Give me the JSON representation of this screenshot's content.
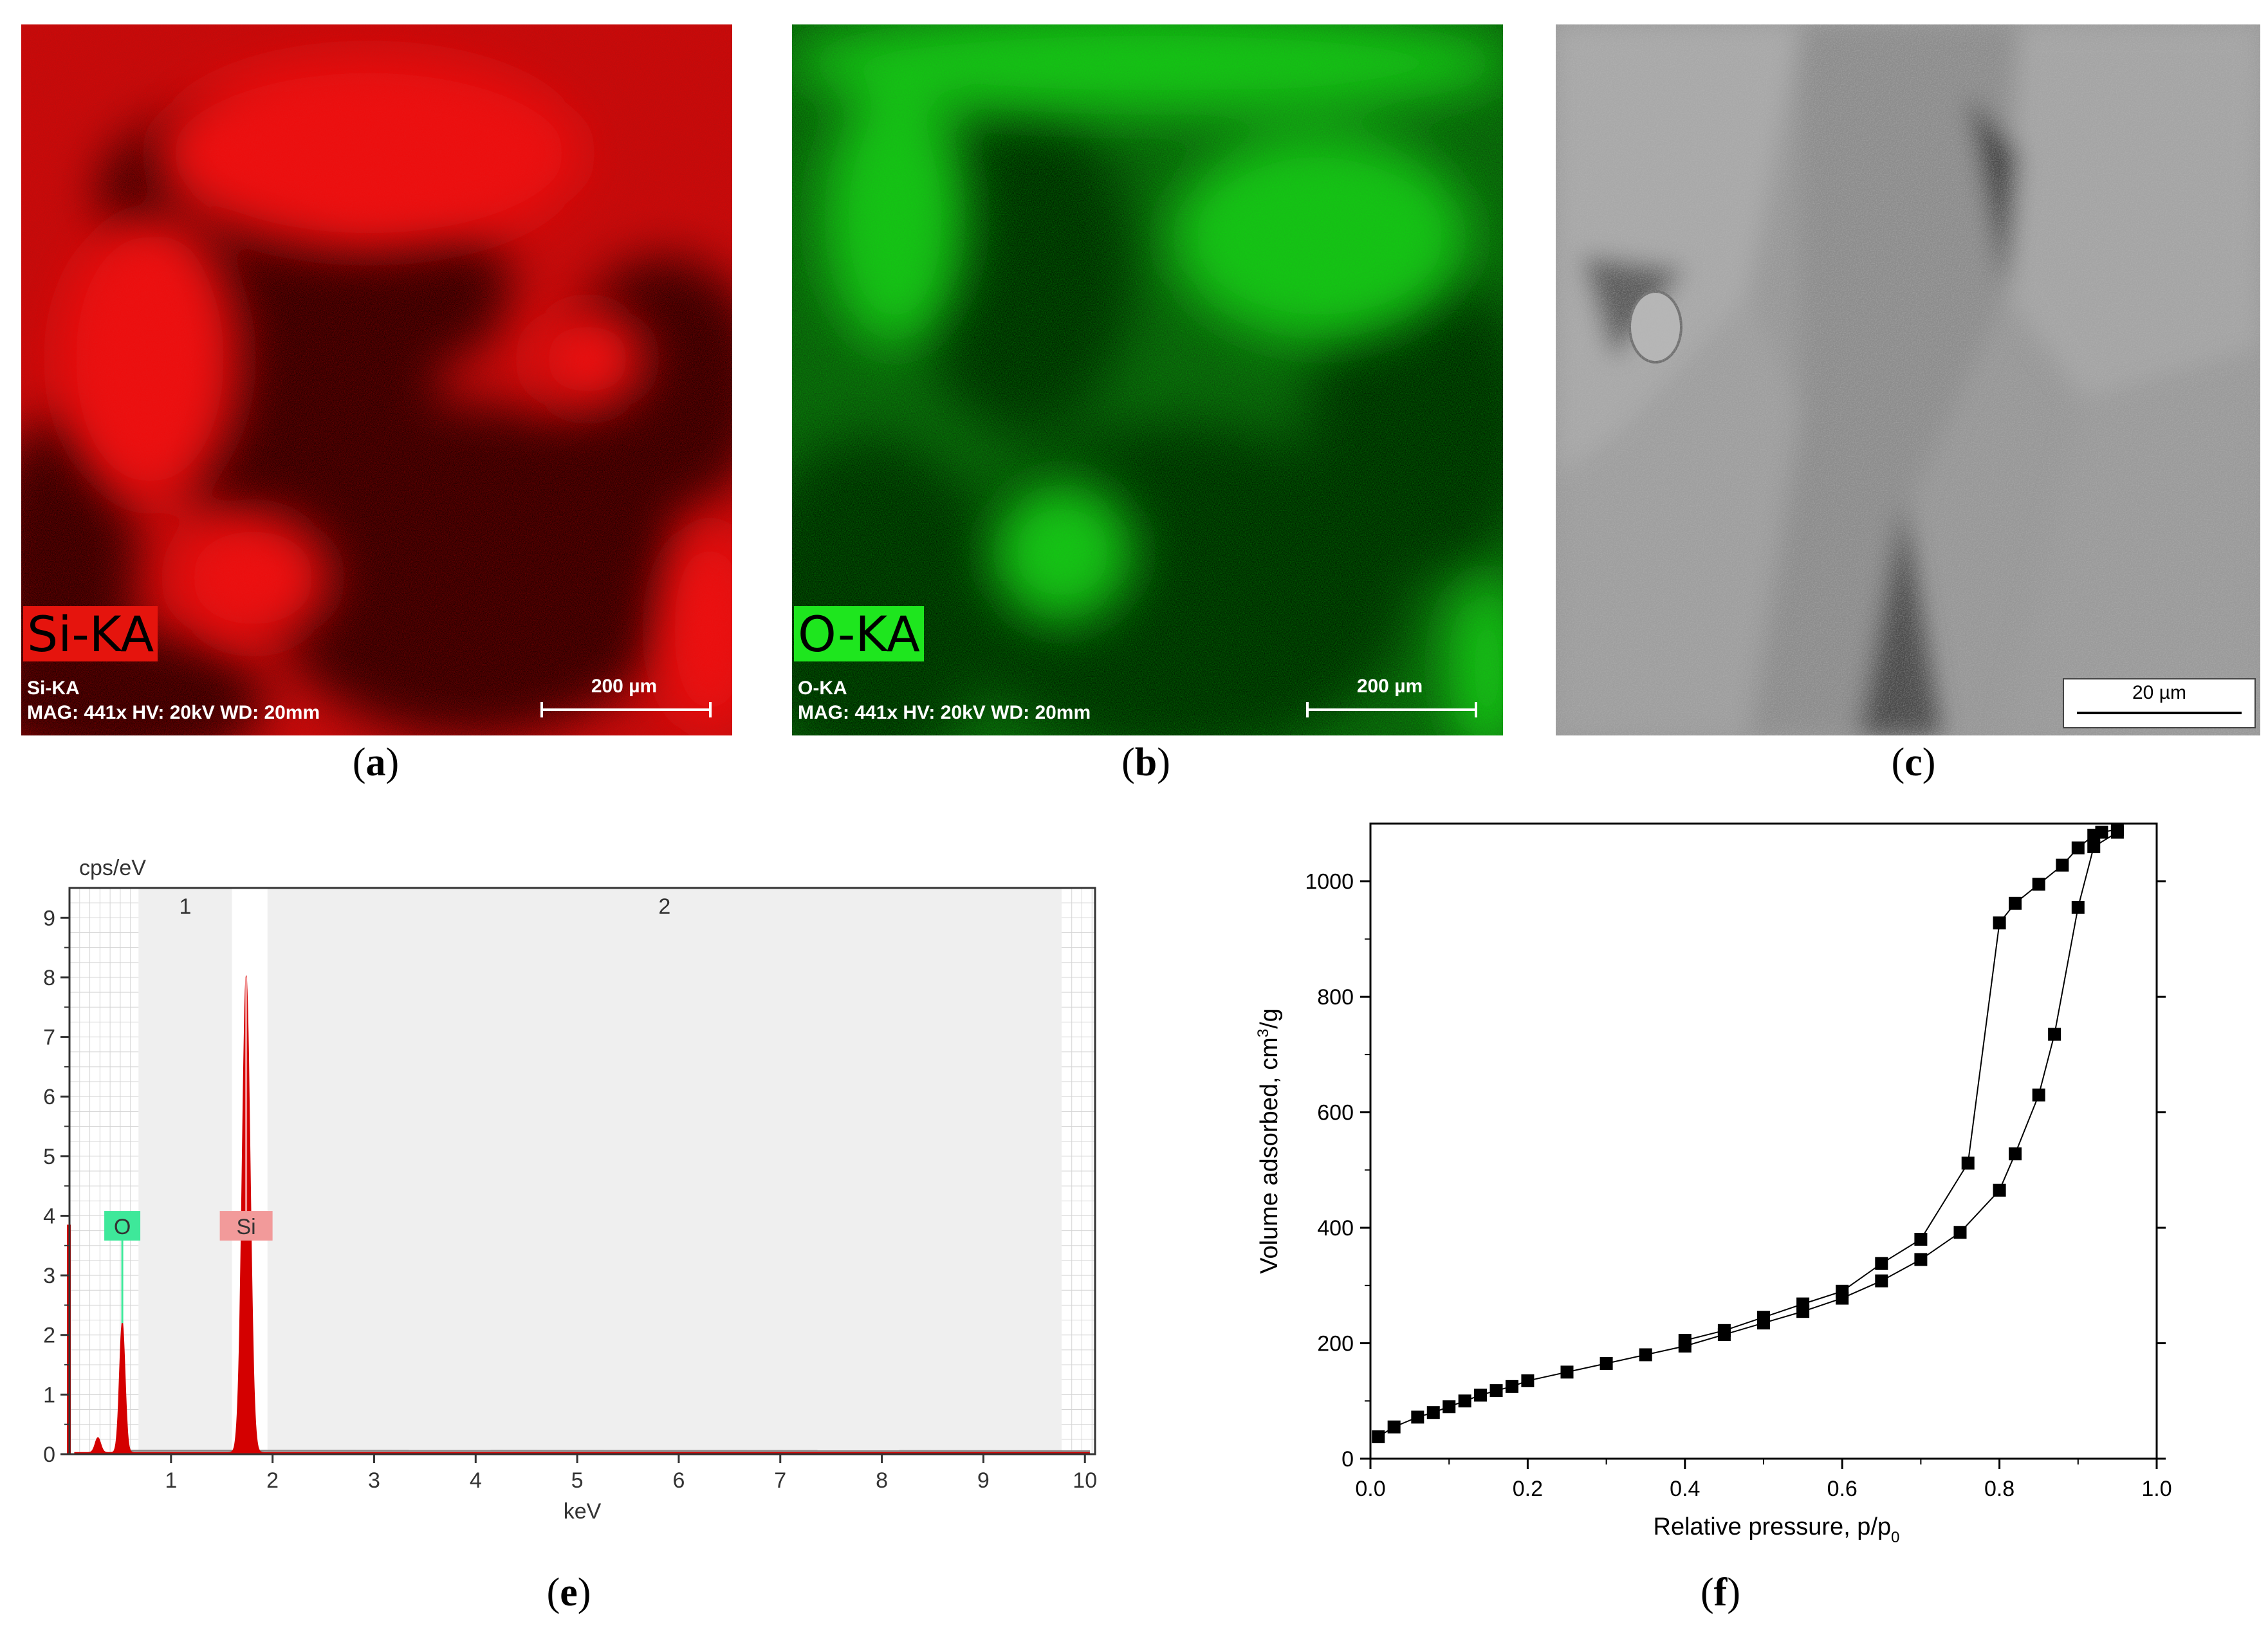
{
  "panels": {
    "a": {
      "label_open": "(",
      "label_letter": "a",
      "label_close": ")",
      "element_tag": "Si-KA",
      "caption_line1": "Si-KA",
      "caption_line2": "MAG: 441x HV: 20kV  WD: 20mm",
      "scale_label": "200 µm",
      "tag_color": "#e5140d",
      "map_color": "#d81010"
    },
    "b": {
      "label_open": "(",
      "label_letter": "b",
      "label_close": ")",
      "element_tag": "O-KA",
      "caption_line1": "O-KA",
      "caption_line2": "MAG: 441x HV: 20kV  WD: 20mm",
      "scale_label": "200 µm",
      "tag_color": "#1ee61e",
      "map_color": "#22c022"
    },
    "c": {
      "label_open": "(",
      "label_letter": "c",
      "label_close": ")",
      "scale_label": "20 µm"
    },
    "e": {
      "label_open": "(",
      "label_letter": "e",
      "label_close": ")"
    },
    "f": {
      "label_open": "(",
      "label_letter": "f",
      "label_close": ")"
    }
  },
  "chart_data": [
    {
      "type": "area",
      "panel": "e",
      "ylabel": "cps/eV",
      "xlabel": "keV",
      "xlim": [
        0,
        10.1
      ],
      "ylim": [
        0,
        9.5
      ],
      "x_ticks": [
        1,
        2,
        3,
        4,
        5,
        6,
        7,
        8,
        9,
        10
      ],
      "y_ticks": [
        0,
        1,
        2,
        3,
        4,
        5,
        6,
        7,
        8,
        9
      ],
      "regions": [
        {
          "name": "1",
          "start": 0.68,
          "end": 1.6
        },
        {
          "name": "2",
          "start": 1.95,
          "end": 9.77
        }
      ],
      "peaks": [
        {
          "element": "O",
          "energy": 0.52,
          "height": 2.2,
          "color": "#3ee89a"
        },
        {
          "element": "Si",
          "energy": 1.74,
          "height": 8.0,
          "color": "#f29a9a"
        },
        {
          "element": "",
          "energy": 0.28,
          "height": 0.25,
          "color": ""
        }
      ],
      "fill_color": "#d40000",
      "grid": true
    },
    {
      "type": "scatter",
      "panel": "f",
      "xlabel": "Relative pressure, p/p",
      "xlabel_sub": "0",
      "ylabel": "Volume adsorbed, cm",
      "ylabel_sup": "3",
      "ylabel_tail": "/g",
      "xlim": [
        0.0,
        1.0
      ],
      "ylim": [
        0,
        1100
      ],
      "x_ticks": [
        "0.0",
        "0.2",
        "0.4",
        "0.6",
        "0.8",
        "1.0"
      ],
      "y_ticks": [
        "0",
        "200",
        "400",
        "600",
        "800",
        "1000"
      ],
      "series": [
        {
          "x": [
            0.01,
            0.03,
            0.06,
            0.08,
            0.1,
            0.12,
            0.14,
            0.16,
            0.18,
            0.2,
            0.25,
            0.3,
            0.35,
            0.4,
            0.45,
            0.5,
            0.55,
            0.6,
            0.65,
            0.7,
            0.75,
            0.8,
            0.82,
            0.85,
            0.87,
            0.9,
            0.92,
            0.95
          ],
          "y": [
            38,
            55,
            72,
            80,
            90,
            100,
            110,
            118,
            125,
            135,
            150,
            165,
            180,
            195,
            215,
            235,
            255,
            278,
            308,
            345,
            392,
            465,
            528,
            630,
            735,
            955,
            1060,
            1085
          ]
        },
        {
          "x": [
            0.95,
            0.93,
            0.92,
            0.9,
            0.88,
            0.85,
            0.82,
            0.8,
            0.76,
            0.7,
            0.65,
            0.6,
            0.55,
            0.5,
            0.45,
            0.4
          ],
          "y": [
            1090,
            1085,
            1080,
            1058,
            1028,
            995,
            962,
            928,
            512,
            380,
            338,
            290,
            268,
            245,
            222,
            205
          ]
        }
      ],
      "marker": "square",
      "grid": false
    }
  ]
}
